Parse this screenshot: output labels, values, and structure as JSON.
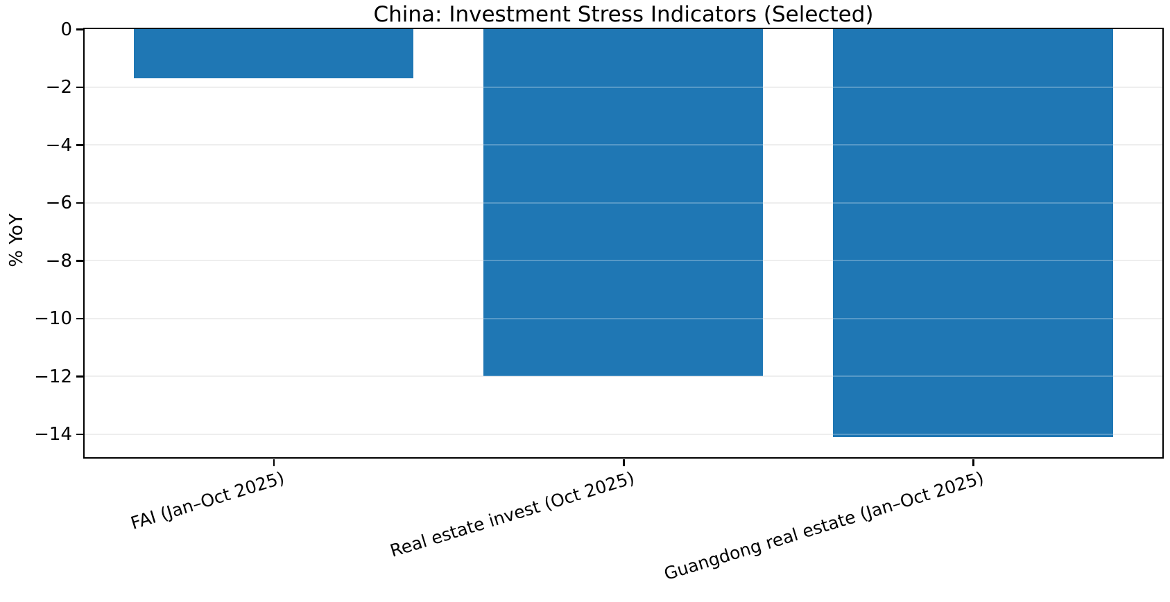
{
  "chart_data": {
    "type": "bar",
    "title": "China: Investment Stress Indicators (Selected)",
    "ylabel": "% YoY",
    "xlabel": "",
    "categories": [
      "FAI (Jan–Oct 2025)",
      "Real estate invest (Oct 2025)",
      "Guangdong real estate (Jan–Oct 2025)"
    ],
    "values": [
      -1.7,
      -12.0,
      -14.1
    ],
    "yticks": [
      0,
      -2,
      -4,
      -6,
      -8,
      -10,
      -12,
      -14
    ],
    "ylim": [
      -14.8,
      0
    ],
    "xlim": [
      -0.54,
      2.54
    ],
    "bar_width_fraction": 0.8,
    "x_tick_label_rotation_deg": 17,
    "grid": "horizontal",
    "legend": "none",
    "colors": {
      "bar": "#1f77b4",
      "gridline": "#e9e9e9",
      "spine": "#000000",
      "background": "#ffffff",
      "text": "#000000"
    }
  }
}
